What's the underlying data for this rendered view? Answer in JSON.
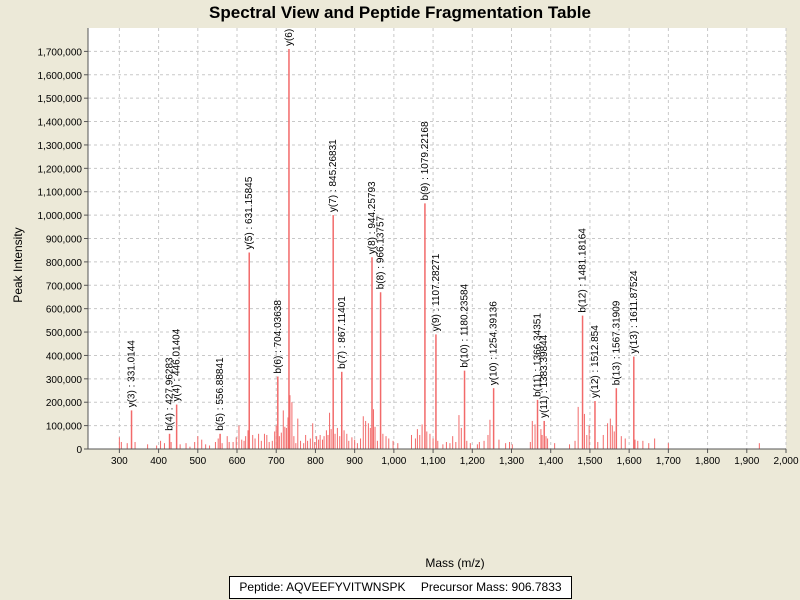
{
  "chart_data": {
    "type": "bar",
    "title": "Spectral View and Peptide Fragmentation Table",
    "xlabel": "Mass (m/z)",
    "ylabel": "Peak Intensity",
    "xlim": [
      220,
      2000
    ],
    "ylim": [
      0,
      1800000
    ],
    "grid": true,
    "x_ticks": [
      300,
      400,
      500,
      600,
      700,
      800,
      900,
      1000,
      1100,
      1200,
      1300,
      1400,
      1500,
      1600,
      1700,
      1800,
      1900,
      2000
    ],
    "x_tick_labels": [
      "300",
      "400",
      "500",
      "600",
      "700",
      "800",
      "900",
      "1,000",
      "1,100",
      "1,200",
      "1,300",
      "1,400",
      "1,500",
      "1,600",
      "1,700",
      "1,800",
      "1,900",
      "2,000"
    ],
    "y_ticks": [
      0,
      100000,
      200000,
      300000,
      400000,
      500000,
      600000,
      700000,
      800000,
      900000,
      1000000,
      1100000,
      1200000,
      1300000,
      1400000,
      1500000,
      1600000,
      1700000
    ],
    "y_tick_labels": [
      "0",
      "100,000",
      "200,000",
      "300,000",
      "400,000",
      "500,000",
      "600,000",
      "700,000",
      "800,000",
      "900,000",
      "1,000,000",
      "1,100,000",
      "1,200,000",
      "1,300,000",
      "1,400,000",
      "1,500,000",
      "1,600,000",
      "1,700,000"
    ],
    "annotated_peaks": [
      {
        "mz": 331.0144,
        "intensity": 165000,
        "label": "y(3) : 331.0144"
      },
      {
        "mz": 427.96283,
        "intensity": 65000,
        "label": "b(4) : 427.96283"
      },
      {
        "mz": 446.01404,
        "intensity": 190000,
        "label": "y(4) : 446.01404"
      },
      {
        "mz": 556.88841,
        "intensity": 65000,
        "label": "b(5) : 556.88841"
      },
      {
        "mz": 631.15845,
        "intensity": 840000,
        "label": "y(5) : 631.15845"
      },
      {
        "mz": 704.03638,
        "intensity": 310000,
        "label": "b(6) : 704.03638"
      },
      {
        "mz": 732.5,
        "intensity": 1710000,
        "label": "y(6)"
      },
      {
        "mz": 845.26831,
        "intensity": 1000000,
        "label": "y(7) : 845.26831"
      },
      {
        "mz": 867.11401,
        "intensity": 330000,
        "label": "b(7) : 867.11401"
      },
      {
        "mz": 944.25793,
        "intensity": 820000,
        "label": "y(8) : 944.25793"
      },
      {
        "mz": 966.13757,
        "intensity": 670000,
        "label": "b(8) : 966.13757"
      },
      {
        "mz": 1079.22168,
        "intensity": 1050000,
        "label": "b(9) : 1079.22168"
      },
      {
        "mz": 1107.28271,
        "intensity": 490000,
        "label": "y(9) : 1107.28271"
      },
      {
        "mz": 1180.23584,
        "intensity": 335000,
        "label": "b(10) : 1180.23584"
      },
      {
        "mz": 1254.39136,
        "intensity": 260000,
        "label": "y(10) : 1254.39136"
      },
      {
        "mz": 1366.34351,
        "intensity": 210000,
        "label": "b(11) : 1366.34351"
      },
      {
        "mz": 1383.39844,
        "intensity": 120000,
        "label": "y(11) : 1383.39844"
      },
      {
        "mz": 1481.18164,
        "intensity": 570000,
        "label": "b(12) : 1481.18164"
      },
      {
        "mz": 1512.854,
        "intensity": 205000,
        "label": "y(12) : 1512.854"
      },
      {
        "mz": 1567.31909,
        "intensity": 260000,
        "label": "b(13) : 1567.31909"
      },
      {
        "mz": 1611.87524,
        "intensity": 395000,
        "label": "y(13) : 1611.87524"
      }
    ],
    "unlabeled_peaks": [
      [
        300,
        50000
      ],
      [
        305,
        30000
      ],
      [
        320,
        25000
      ],
      [
        340,
        30000
      ],
      [
        372,
        20000
      ],
      [
        395,
        15000
      ],
      [
        405,
        35000
      ],
      [
        415,
        25000
      ],
      [
        432,
        30000
      ],
      [
        455,
        20000
      ],
      [
        470,
        25000
      ],
      [
        480,
        10000
      ],
      [
        492,
        30000
      ],
      [
        500,
        55000
      ],
      [
        510,
        40000
      ],
      [
        520,
        20000
      ],
      [
        530,
        15000
      ],
      [
        545,
        30000
      ],
      [
        552,
        45000
      ],
      [
        562,
        25000
      ],
      [
        575,
        55000
      ],
      [
        580,
        30000
      ],
      [
        590,
        30000
      ],
      [
        598,
        50000
      ],
      [
        605,
        100000
      ],
      [
        612,
        40000
      ],
      [
        618,
        35000
      ],
      [
        622,
        55000
      ],
      [
        628,
        80000
      ],
      [
        640,
        60000
      ],
      [
        646,
        45000
      ],
      [
        655,
        65000
      ],
      [
        662,
        35000
      ],
      [
        670,
        65000
      ],
      [
        676,
        60000
      ],
      [
        682,
        30000
      ],
      [
        690,
        35000
      ],
      [
        696,
        75000
      ],
      [
        700,
        100000
      ],
      [
        708,
        55000
      ],
      [
        713,
        70000
      ],
      [
        718,
        165000
      ],
      [
        722,
        95000
      ],
      [
        726,
        90000
      ],
      [
        730,
        135000
      ],
      [
        735,
        230000
      ],
      [
        740,
        200000
      ],
      [
        745,
        55000
      ],
      [
        750,
        25000
      ],
      [
        755,
        130000
      ],
      [
        762,
        35000
      ],
      [
        770,
        25000
      ],
      [
        775,
        60000
      ],
      [
        780,
        35000
      ],
      [
        787,
        45000
      ],
      [
        793,
        110000
      ],
      [
        798,
        30000
      ],
      [
        803,
        55000
      ],
      [
        808,
        40000
      ],
      [
        812,
        60000
      ],
      [
        818,
        40000
      ],
      [
        822,
        55000
      ],
      [
        828,
        80000
      ],
      [
        832,
        60000
      ],
      [
        836,
        155000
      ],
      [
        840,
        85000
      ],
      [
        850,
        65000
      ],
      [
        856,
        90000
      ],
      [
        862,
        55000
      ],
      [
        873,
        80000
      ],
      [
        880,
        65000
      ],
      [
        885,
        35000
      ],
      [
        893,
        50000
      ],
      [
        900,
        40000
      ],
      [
        907,
        25000
      ],
      [
        915,
        45000
      ],
      [
        922,
        140000
      ],
      [
        928,
        120000
      ],
      [
        935,
        110000
      ],
      [
        940,
        90000
      ],
      [
        948,
        170000
      ],
      [
        952,
        95000
      ],
      [
        958,
        35000
      ],
      [
        972,
        65000
      ],
      [
        980,
        55000
      ],
      [
        987,
        45000
      ],
      [
        998,
        35000
      ],
      [
        1010,
        25000
      ],
      [
        1045,
        60000
      ],
      [
        1055,
        45000
      ],
      [
        1060,
        85000
      ],
      [
        1066,
        60000
      ],
      [
        1072,
        105000
      ],
      [
        1084,
        75000
      ],
      [
        1092,
        65000
      ],
      [
        1100,
        45000
      ],
      [
        1112,
        35000
      ],
      [
        1125,
        20000
      ],
      [
        1134,
        30000
      ],
      [
        1143,
        25000
      ],
      [
        1150,
        55000
      ],
      [
        1158,
        30000
      ],
      [
        1166,
        145000
      ],
      [
        1172,
        90000
      ],
      [
        1186,
        35000
      ],
      [
        1195,
        25000
      ],
      [
        1213,
        20000
      ],
      [
        1218,
        30000
      ],
      [
        1230,
        35000
      ],
      [
        1240,
        60000
      ],
      [
        1245,
        125000
      ],
      [
        1268,
        40000
      ],
      [
        1285,
        25000
      ],
      [
        1295,
        30000
      ],
      [
        1302,
        20000
      ],
      [
        1348,
        30000
      ],
      [
        1353,
        120000
      ],
      [
        1360,
        105000
      ],
      [
        1375,
        85000
      ],
      [
        1378,
        60000
      ],
      [
        1388,
        55000
      ],
      [
        1392,
        45000
      ],
      [
        1410,
        25000
      ],
      [
        1448,
        20000
      ],
      [
        1462,
        35000
      ],
      [
        1470,
        180000
      ],
      [
        1486,
        150000
      ],
      [
        1492,
        60000
      ],
      [
        1498,
        100000
      ],
      [
        1520,
        30000
      ],
      [
        1534,
        60000
      ],
      [
        1545,
        110000
      ],
      [
        1552,
        130000
      ],
      [
        1557,
        100000
      ],
      [
        1562,
        75000
      ],
      [
        1580,
        55000
      ],
      [
        1590,
        45000
      ],
      [
        1615,
        40000
      ],
      [
        1622,
        35000
      ],
      [
        1635,
        35000
      ],
      [
        1650,
        25000
      ],
      [
        1665,
        45000
      ],
      [
        1700,
        25000
      ],
      [
        1932,
        25000
      ]
    ]
  },
  "footer": {
    "peptide_label": "Peptide: AQVEEFYVITWNSPK",
    "precursor_label": "Precursor Mass: 906.7833"
  },
  "colors": {
    "peak": "#f26a6a",
    "grid": "#c8c8c8",
    "background": "#ece9d8",
    "plot_bg": "#ffffff"
  }
}
